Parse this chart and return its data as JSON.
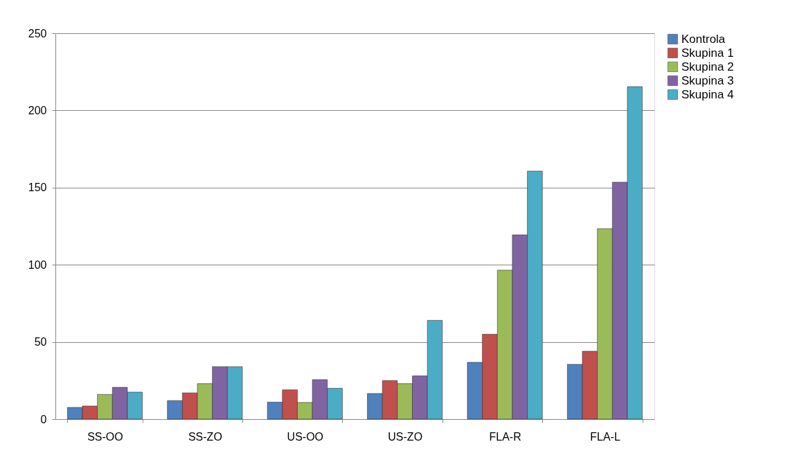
{
  "chart_data": {
    "type": "bar",
    "categories": [
      "SS-OO",
      "SS-ZO",
      "US-OO",
      "US-ZO",
      "FLA-R",
      "FLA-L"
    ],
    "series": [
      {
        "name": "Kontrola",
        "color": "#4f81bd",
        "values": [
          7.6,
          12,
          11,
          16.6,
          36.8,
          35.5
        ]
      },
      {
        "name": "Skupina 1",
        "color": "#c0504d",
        "values": [
          8.5,
          17,
          19,
          25,
          55,
          44
        ]
      },
      {
        "name": "Skupina 2",
        "color": "#9bbb59",
        "values": [
          16,
          23,
          10.8,
          23,
          96.5,
          123.4
        ]
      },
      {
        "name": "Skupina 3",
        "color": "#8064a2",
        "values": [
          20.6,
          34,
          25.6,
          28,
          119.4,
          153.5
        ]
      },
      {
        "name": "Skupina 4",
        "color": "#4bacc6",
        "values": [
          17.5,
          34,
          20,
          64,
          160.7,
          215.4
        ]
      }
    ],
    "ylim": [
      0,
      250
    ],
    "yticks": [
      0,
      50,
      100,
      150,
      200,
      250
    ],
    "grid": "y",
    "legend": "right"
  }
}
